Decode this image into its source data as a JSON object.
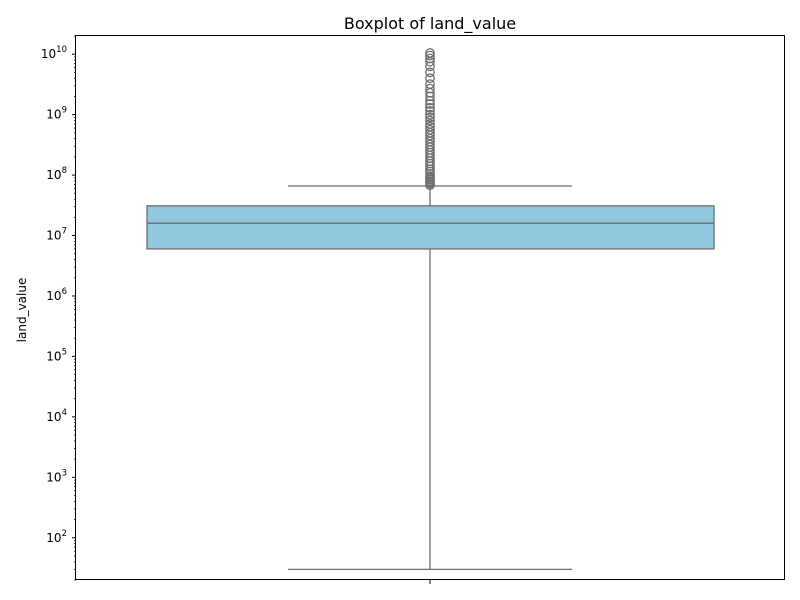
{
  "chart_data": {
    "type": "boxplot",
    "title": "Boxplot of land_value",
    "xlabel": "",
    "ylabel": "land_value",
    "yscale": "log",
    "ylim": [
      20,
      20000000000
    ],
    "y_ticks": [
      {
        "value": 100,
        "base": "10",
        "exp": "2"
      },
      {
        "value": 1000,
        "base": "10",
        "exp": "3"
      },
      {
        "value": 10000,
        "base": "10",
        "exp": "4"
      },
      {
        "value": 100000,
        "base": "10",
        "exp": "5"
      },
      {
        "value": 1000000,
        "base": "10",
        "exp": "6"
      },
      {
        "value": 10000000,
        "base": "10",
        "exp": "7"
      },
      {
        "value": 100000000,
        "base": "10",
        "exp": "8"
      },
      {
        "value": 1000000000,
        "base": "10",
        "exp": "9"
      },
      {
        "value": 10000000000,
        "base": "10",
        "exp": "10"
      }
    ],
    "grid": false,
    "box": {
      "whisker_low": 30,
      "q1": 6000000,
      "median": 16000000,
      "q3": 31000000,
      "whisker_high": 66000000,
      "outliers": [
        68000000,
        72000000,
        76000000,
        80000000,
        85000000,
        90000000,
        96000000,
        105000000,
        115000000,
        125000000,
        140000000,
        155000000,
        170000000,
        190000000,
        210000000,
        235000000,
        260000000,
        290000000,
        320000000,
        360000000,
        400000000,
        450000000,
        500000000,
        560000000,
        630000000,
        700000000,
        800000000,
        900000000,
        1000000000,
        1150000000,
        1300000000,
        1500000000,
        1700000000,
        2000000000,
        2300000000,
        2700000000,
        3200000000,
        4000000000,
        5000000000,
        6300000000,
        7500000000,
        8500000000,
        9500000000,
        10500000000
      ]
    },
    "colors": {
      "box_fill": "#92c8de",
      "line": "#6e6e6e",
      "outlier": "#6e6e6e"
    }
  }
}
